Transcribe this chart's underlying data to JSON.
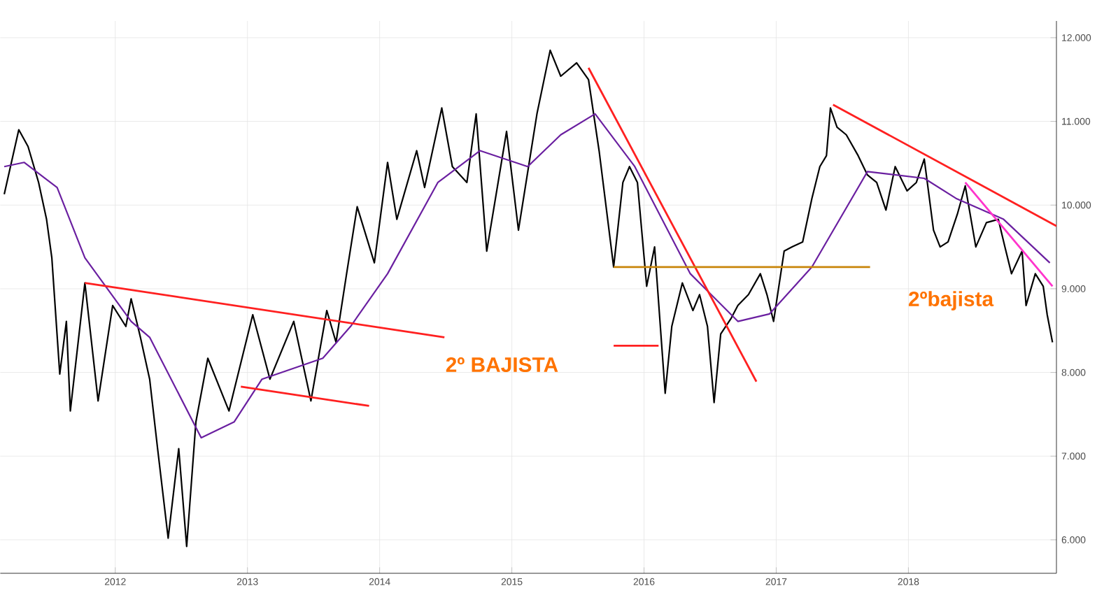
{
  "chart_data": {
    "type": "line",
    "annotations": [
      "2º BAJISTA",
      "2ºbajista"
    ],
    "xlim": [
      2011.13,
      2019.12
    ],
    "ylim": [
      5600,
      12200
    ],
    "xticks": [
      2012,
      2013,
      2014,
      2015,
      2016,
      2017,
      2018
    ],
    "yticks": [
      {
        "value": 6000,
        "label": "6.000"
      },
      {
        "value": 7000,
        "label": "7.000"
      },
      {
        "value": 8000,
        "label": "8.000"
      },
      {
        "value": 9000,
        "label": "9.000"
      },
      {
        "value": 10000,
        "label": "10.000"
      },
      {
        "value": 11000,
        "label": "11.000"
      },
      {
        "value": 12000,
        "label": "12.000"
      }
    ],
    "grid": true,
    "marker": "none",
    "line_style": "solid",
    "series": [
      {
        "color": "#000000",
        "x": [
          2011.16,
          2011.27,
          2011.34,
          2011.42,
          2011.48,
          2011.52,
          2011.58,
          2011.63,
          2011.66,
          2011.77,
          2011.87,
          2011.98,
          2012.08,
          2012.12,
          2012.19,
          2012.26,
          2012.32,
          2012.4,
          2012.48,
          2012.54,
          2012.61,
          2012.7,
          2012.86,
          2013.04,
          2013.17,
          2013.35,
          2013.48,
          2013.6,
          2013.67,
          2013.75,
          2013.83,
          2013.96,
          2014.06,
          2014.13,
          2014.28,
          2014.34,
          2014.47,
          2014.55,
          2014.66,
          2014.73,
          2014.81,
          2014.96,
          2015.05,
          2015.19,
          2015.29,
          2015.37,
          2015.49,
          2015.58,
          2015.66,
          2015.77,
          2015.84,
          2015.89,
          2015.95,
          2016.02,
          2016.08,
          2016.16,
          2016.21,
          2016.29,
          2016.37,
          2016.42,
          2016.48,
          2016.53,
          2016.58,
          2016.66,
          2016.71,
          2016.79,
          2016.88,
          2016.93,
          2016.98,
          2017.06,
          2017.12,
          2017.2,
          2017.27,
          2017.33,
          2017.38,
          2017.41,
          2017.46,
          2017.53,
          2017.62,
          2017.69,
          2017.76,
          2017.83,
          2017.9,
          2017.99,
          2018.06,
          2018.12,
          2018.19,
          2018.24,
          2018.3,
          2018.37,
          2018.43,
          2018.51,
          2018.59,
          2018.68,
          2018.73,
          2018.78,
          2018.86,
          2018.89,
          2018.96,
          2019.02,
          2019.05,
          2019.09
        ],
        "values": [
          10130,
          10900,
          10700,
          10270,
          9830,
          9370,
          7980,
          8610,
          7540,
          9070,
          7660,
          8800,
          8550,
          8880,
          8420,
          7920,
          7090,
          6020,
          7090,
          5920,
          7410,
          8170,
          7540,
          8690,
          7920,
          8610,
          7660,
          8740,
          8360,
          9180,
          9980,
          9310,
          10510,
          9830,
          10650,
          10210,
          11160,
          10460,
          10270,
          11090,
          9450,
          10880,
          9700,
          11090,
          11850,
          11540,
          11700,
          11500,
          10650,
          9260,
          10270,
          10460,
          10270,
          9030,
          9500,
          7750,
          8550,
          9070,
          8740,
          8930,
          8550,
          7640,
          8460,
          8650,
          8800,
          8930,
          9180,
          8930,
          8610,
          9450,
          9500,
          9560,
          10080,
          10460,
          10590,
          11160,
          10930,
          10840,
          10590,
          10360,
          10270,
          9940,
          10460,
          10170,
          10270,
          10550,
          9700,
          9500,
          9560,
          9890,
          10230,
          9500,
          9790,
          9830,
          9500,
          9180,
          9450,
          8800,
          9180,
          9030,
          8690,
          8360
        ]
      },
      {
        "color": "#6a1fa0",
        "x": [
          2011.16,
          2011.31,
          2011.56,
          2011.77,
          2012.12,
          2012.26,
          2012.65,
          2012.9,
          2013.11,
          2013.57,
          2013.78,
          2014.06,
          2014.44,
          2014.76,
          2015.12,
          2015.37,
          2015.63,
          2015.93,
          2016.35,
          2016.71,
          2016.95,
          2017.27,
          2017.69,
          2018.12,
          2018.36,
          2018.72,
          2019.07
        ],
        "values": [
          10460,
          10510,
          10210,
          9370,
          8610,
          8420,
          7220,
          7410,
          7920,
          8170,
          8550,
          9180,
          10270,
          10650,
          10460,
          10840,
          11090,
          10460,
          9180,
          8610,
          8700,
          9260,
          10400,
          10320,
          10080,
          9830,
          9310
        ]
      },
      {
        "color": "#ff2020",
        "x": [
          2011.77,
          2014.49
        ],
        "values": [
          9070,
          8420
        ]
      },
      {
        "color": "#ff2020",
        "x": [
          2012.95,
          2013.92
        ],
        "values": [
          7830,
          7600
        ]
      },
      {
        "color": "#ff2020",
        "x": [
          2015.58,
          2016.85
        ],
        "values": [
          11640,
          7890
        ]
      },
      {
        "color": "#ff2020",
        "x": [
          2017.43,
          2019.12
        ],
        "values": [
          11200,
          9750
        ]
      },
      {
        "color": "#ff33cc",
        "x": [
          2018.43,
          2019.09
        ],
        "values": [
          10270,
          9030
        ]
      },
      {
        "color": "#c8860a",
        "x": [
          2015.77,
          2017.71
        ],
        "values": [
          9260,
          9260
        ]
      },
      {
        "color": "#ff2020",
        "x": [
          2015.77,
          2016.11
        ],
        "values": [
          8320,
          8320
        ]
      }
    ]
  }
}
